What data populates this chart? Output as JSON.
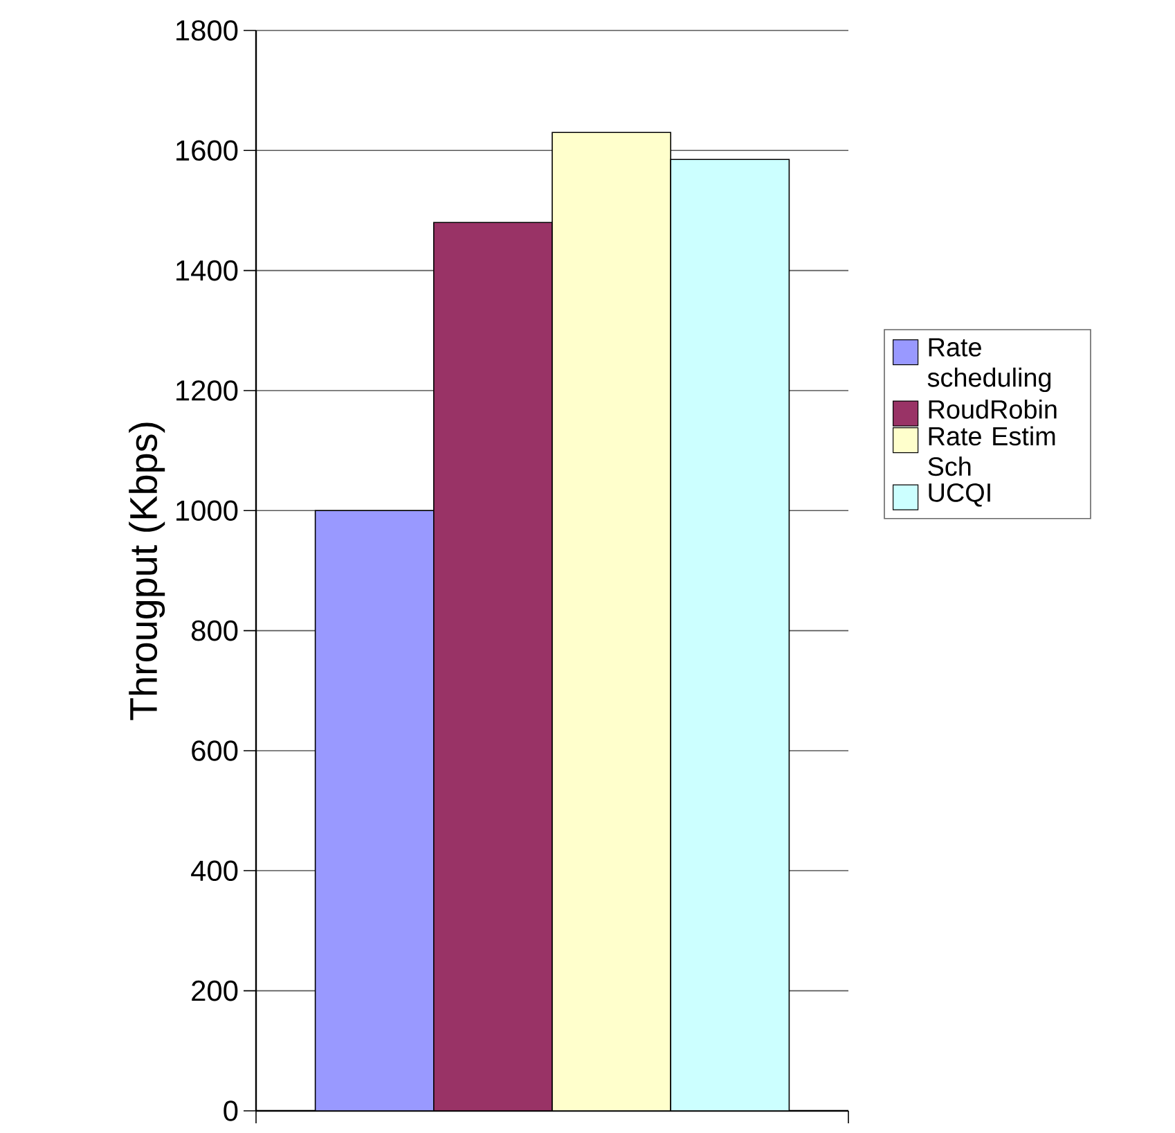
{
  "chart_data": {
    "type": "bar",
    "ylabel": "Througput (Kbps)",
    "categories": [
      null
    ],
    "series": [
      {
        "name": "Rate scheduling",
        "color": "#9999ff",
        "values": [
          1000
        ]
      },
      {
        "name": "RoudRobin",
        "color": "#993366",
        "values": [
          1480
        ]
      },
      {
        "name": "Rate Estim Sch",
        "color": "#ffffcc",
        "values": [
          1630
        ]
      },
      {
        "name": "UCQI",
        "color": "#ccffff",
        "values": [
          1585
        ]
      }
    ],
    "ylim": [
      0,
      1800
    ],
    "yticks": [
      0,
      200,
      400,
      600,
      800,
      1000,
      1200,
      1400,
      1600,
      1800
    ],
    "grid": "y",
    "legend": "right"
  }
}
